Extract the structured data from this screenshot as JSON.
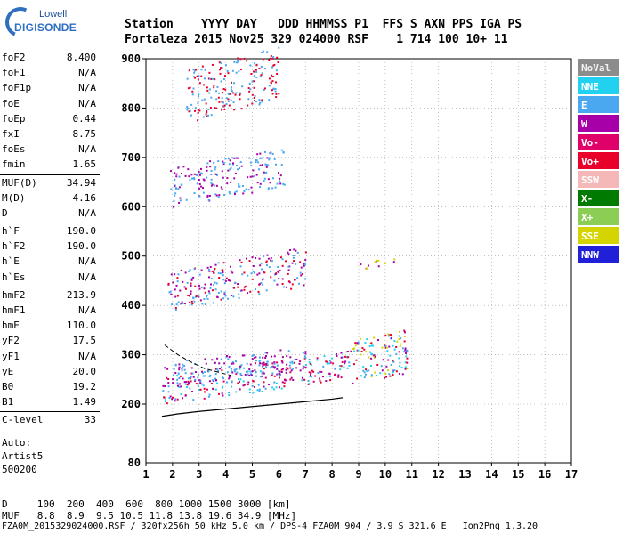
{
  "logo": {
    "line1": "Lowell",
    "line2": "DIGISONDE"
  },
  "header": {
    "line1": "Station    YYYY DAY   DDD HHMMSS P1  FFS S AXN PPS IGA PS",
    "line2": "Fortaleza 2015 Nov25 329 024000 RSF    1 714 100 10+ 11"
  },
  "params": [
    {
      "k": "foF2",
      "v": "8.400"
    },
    {
      "k": "foF1",
      "v": "N/A"
    },
    {
      "k": "foF1p",
      "v": "N/A"
    },
    {
      "k": "foE",
      "v": "N/A"
    },
    {
      "k": "foEp",
      "v": "0.44"
    },
    {
      "k": "fxI",
      "v": "8.75"
    },
    {
      "k": "foEs",
      "v": "N/A"
    },
    {
      "k": "fmin",
      "v": "1.65"
    },
    {
      "k": "MUF(D)",
      "v": "34.94"
    },
    {
      "k": "M(D)",
      "v": "4.16"
    },
    {
      "k": "D",
      "v": "N/A"
    },
    {
      "k": "h`F",
      "v": "190.0"
    },
    {
      "k": "h`F2",
      "v": "190.0"
    },
    {
      "k": "h`E",
      "v": "N/A"
    },
    {
      "k": "h`Es",
      "v": "N/A"
    },
    {
      "k": "hmF2",
      "v": "213.9"
    },
    {
      "k": "hmF1",
      "v": "N/A"
    },
    {
      "k": "hmE",
      "v": "110.0"
    },
    {
      "k": "yF2",
      "v": "17.5"
    },
    {
      "k": "yF1",
      "v": "N/A"
    },
    {
      "k": "yE",
      "v": "20.0"
    },
    {
      "k": "B0",
      "v": "19.2"
    },
    {
      "k": "B1",
      "v": "1.49"
    },
    {
      "k": "C-level",
      "v": "33"
    }
  ],
  "auto": {
    "line1": "Auto:",
    "line2": "Artist5",
    "line3": "500200"
  },
  "bottom": {
    "line1": "D     100  200  400  600  800 1000 1500 3000 [km]",
    "line2": "MUF   8.8  8.9  9.5 10.5 11.8 13.8 19.6 34.9 [MHz]",
    "line3": "FZA0M_2015329024000.RSF / 320fx256h 50 kHz 5.0 km / DPS-4 FZA0M 904 / 3.9 S 321.6 E   Ion2Png 1.3.20"
  },
  "legend": [
    {
      "label": "NoVal",
      "color": "#8c8c8c"
    },
    {
      "label": "NNE",
      "color": "#22d0f0"
    },
    {
      "label": "E",
      "color": "#4aa8f0"
    },
    {
      "label": "W",
      "color": "#a800a8"
    },
    {
      "label": "Vo-",
      "color": "#e0006a"
    },
    {
      "label": "Vo+",
      "color": "#e8002a"
    },
    {
      "label": "SSW",
      "color": "#f4b8b8"
    },
    {
      "label": "X-",
      "color": "#007a00"
    },
    {
      "label": "X+",
      "color": "#8ccd55"
    },
    {
      "label": "SSE",
      "color": "#d4d400"
    },
    {
      "label": "NNW",
      "color": "#2020d8"
    }
  ],
  "chart_data": {
    "type": "scatter",
    "xlim": [
      1,
      17
    ],
    "ylim": [
      80,
      900
    ],
    "x_ticks": [
      1,
      2,
      3,
      4,
      5,
      6,
      7,
      8,
      9,
      10,
      11,
      12,
      13,
      14,
      15,
      16,
      17
    ],
    "y_ticks": [
      200,
      300,
      400,
      500,
      600,
      700,
      800,
      900
    ],
    "y_extra_tick": 80,
    "grid": true,
    "legend_position": "right",
    "clusters": [
      {
        "name": "F-trace O",
        "x": [
          1.6,
          8.6
        ],
        "y": [
          200,
          260
        ],
        "colors": [
          "#4aa8f0",
          "#22d0f0",
          "#a800a8",
          "#e0006a",
          "#e8002a"
        ]
      },
      {
        "name": "F-trace upper",
        "x": [
          1.6,
          7.0
        ],
        "y": [
          235,
          285
        ],
        "colors": [
          "#4aa8f0",
          "#a800a8"
        ]
      },
      {
        "name": "spread",
        "x": [
          8.6,
          10.8
        ],
        "y": [
          240,
          330
        ],
        "colors": [
          "#22d0f0",
          "#a800a8",
          "#4aa8f0",
          "#d4d400",
          "#e8002a"
        ]
      },
      {
        "name": "2nd hop",
        "x": [
          1.8,
          7.0
        ],
        "y": [
          390,
          470
        ],
        "colors": [
          "#4aa8f0",
          "#e8002a",
          "#a800a8"
        ]
      },
      {
        "name": "3rd hop",
        "x": [
          1.9,
          6.2
        ],
        "y": [
          600,
          680
        ],
        "colors": [
          "#4aa8f0",
          "#a800a8"
        ]
      },
      {
        "name": "4th hop",
        "x": [
          2.5,
          6.0
        ],
        "y": [
          770,
          880
        ],
        "colors": [
          "#4aa8f0",
          "#e8002a"
        ]
      },
      {
        "name": "isolated",
        "x": [
          9.0,
          10.4
        ],
        "y": [
          475,
          495
        ],
        "colors": [
          "#a800a8",
          "#d4d400"
        ]
      }
    ],
    "profile": {
      "x": [
        1.6,
        2.2,
        3.0,
        4.0,
        5.0,
        6.0,
        7.0,
        8.0,
        8.4
      ],
      "y": [
        175,
        180,
        185,
        190,
        195,
        200,
        205,
        210,
        213
      ]
    },
    "dashed_curve": {
      "x": [
        1.7,
        2.2,
        2.7,
        3.2,
        3.7,
        4.2
      ],
      "y": [
        320,
        300,
        285,
        272,
        265,
        258
      ]
    }
  }
}
